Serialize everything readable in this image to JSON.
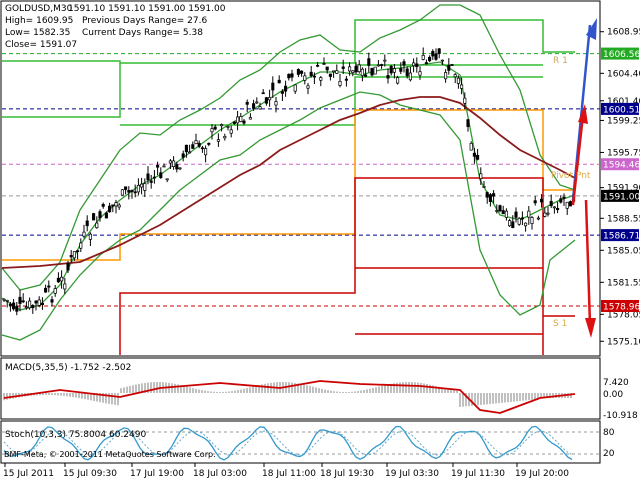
{
  "header": {
    "symbol": "GOLDUSD,M30",
    "ohlc": "1591.10 1591.10 1591.00 1591.00",
    "high": "High= 1609.95",
    "low": "Low= 1582.35",
    "close": "Close= 1591.07",
    "prev_range": "Previous Days Range= 27.6",
    "curr_range": "Current Days Range= 5.38"
  },
  "price_axis": {
    "ticks": [
      "1608.95",
      "1604.40",
      "1601.40",
      "1599.25",
      "1595.75",
      "1591.90",
      "1588.55",
      "1585.05",
      "1581.55",
      "1578.05",
      "1575.10"
    ],
    "tick_values": [
      1608.95,
      1604.4,
      1601.4,
      1599.25,
      1595.75,
      1591.9,
      1588.55,
      1585.05,
      1581.55,
      1578.05,
      1575.1
    ],
    "labels": [
      {
        "text": "1606.56",
        "value": 1606.56,
        "bg": "#22aa22"
      },
      {
        "text": "1600.51",
        "value": 1600.51,
        "bg": "#00008b"
      },
      {
        "text": "1594.46",
        "value": 1594.46,
        "bg": "#cc66cc"
      },
      {
        "text": "1591.00",
        "value": 1591.0,
        "bg": "#000000"
      },
      {
        "text": "1586.71",
        "value": 1586.71,
        "bg": "#00008b"
      },
      {
        "text": "1578.96",
        "value": 1578.96,
        "bg": "#cc0000"
      }
    ],
    "range": [
      1573.6,
      1612.2
    ]
  },
  "pivot_labels": {
    "r1": "R 1",
    "pivot": "Pivot Pnt",
    "s1": "S 1"
  },
  "macd": {
    "label": "MACD(5,35,5) -1.752 -2.502",
    "ticks": [
      "7.420",
      "0.00",
      "-10.918"
    ]
  },
  "stoch": {
    "label": "Stoch(10,3,3) 75.8004 60.2490",
    "ticks": [
      "80",
      "20"
    ]
  },
  "copyright": "BMF-Meta, © 2001-2011 MetaQuotes Software Corp.",
  "time_axis": [
    "15 Jul 2011",
    "15 Jul 09:30",
    "17 Jul 19:00",
    "18 Jul 03:00",
    "18 Jul 11:00",
    "18 Jul 19:30",
    "19 Jul 03:30",
    "19 Jul 11:30",
    "19 Jul 20:00"
  ],
  "colors": {
    "candles": "#000000",
    "ma": "#8b1a1a",
    "bollinger": "#339933",
    "resistance": "#33bb33",
    "pivot": "#ff9900",
    "support": "#cc0000",
    "arrow_up": "#3355cc",
    "arrow_down": "#dd1111",
    "stoch_main": "#3399cc",
    "macd_signal": "#cc0000"
  }
}
